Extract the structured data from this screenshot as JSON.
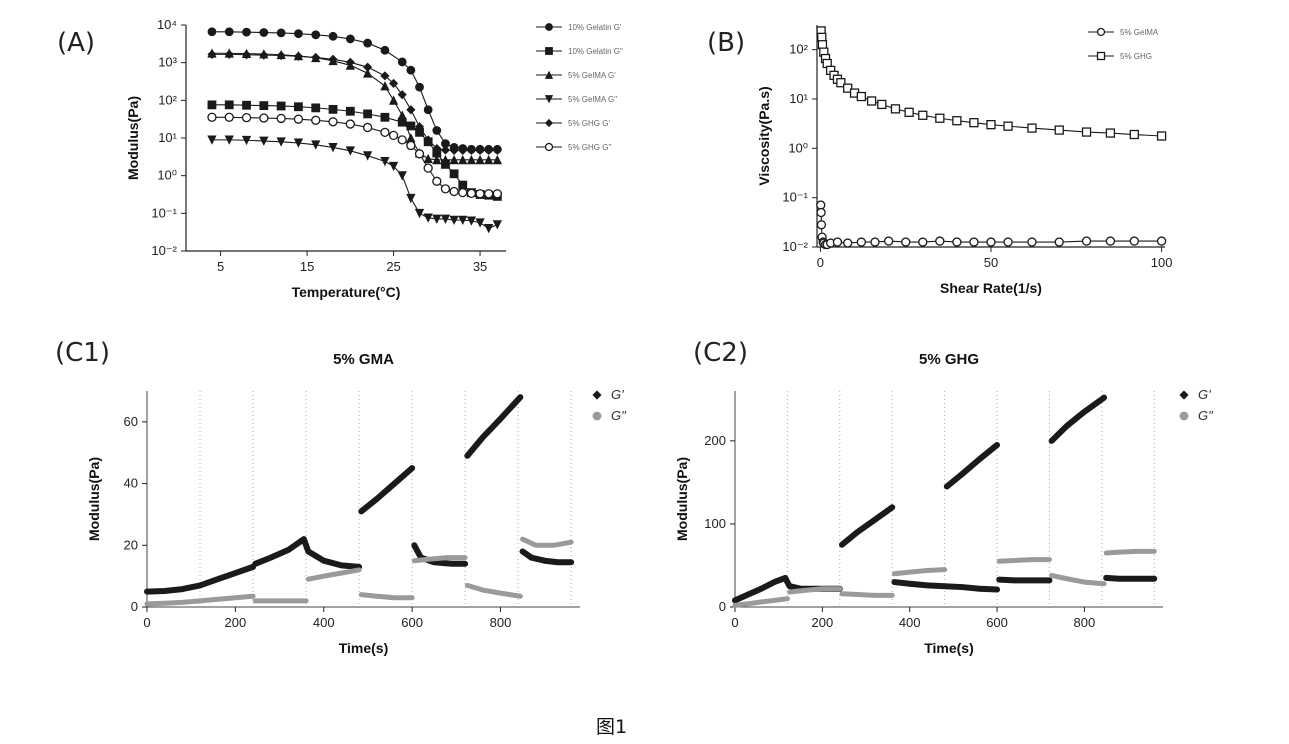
{
  "figure_caption": "图1",
  "chart_data": [
    {
      "panel": "(A)",
      "type": "line",
      "title": "",
      "xlabel": "Temperature(°C)",
      "ylabel": "Modulus(Pa)",
      "xlim": [
        1,
        38
      ],
      "ylim_log10": [
        -2,
        4
      ],
      "xticks": [
        "5",
        "15",
        "25",
        "35"
      ],
      "yticks": [
        "10⁻²",
        "10⁻¹",
        "10⁰",
        "10¹",
        "10²",
        "10³",
        "10⁴"
      ],
      "legend": "right",
      "series": [
        {
          "name": "10% Gelatin G'",
          "marker": "filled-circle",
          "x": [
            4,
            6,
            8,
            10,
            12,
            14,
            16,
            18,
            20,
            22,
            24,
            26,
            27,
            28,
            29,
            30,
            31,
            32,
            33,
            34,
            35,
            36,
            37
          ],
          "log10_y": [
            3.82,
            3.82,
            3.81,
            3.8,
            3.79,
            3.77,
            3.74,
            3.7,
            3.63,
            3.52,
            3.33,
            3.02,
            2.8,
            2.35,
            1.75,
            1.2,
            0.85,
            0.75,
            0.72,
            0.7,
            0.7,
            0.7,
            0.7
          ]
        },
        {
          "name": "10% Gelatin G\"",
          "marker": "filled-square",
          "x": [
            4,
            6,
            8,
            10,
            12,
            14,
            16,
            18,
            20,
            22,
            24,
            26,
            27,
            28,
            29,
            30,
            31,
            32,
            33,
            34,
            35,
            36,
            37
          ],
          "log10_y": [
            1.88,
            1.88,
            1.87,
            1.86,
            1.85,
            1.83,
            1.8,
            1.76,
            1.71,
            1.64,
            1.55,
            1.42,
            1.32,
            1.15,
            0.9,
            0.6,
            0.3,
            0.05,
            -0.25,
            -0.45,
            -0.5,
            -0.52,
            -0.55
          ]
        },
        {
          "name": "5% GelMA G'",
          "marker": "filled-triangle-up",
          "x": [
            4,
            6,
            8,
            10,
            12,
            14,
            16,
            18,
            20,
            22,
            24,
            25,
            26,
            27,
            28,
            29,
            30,
            31,
            32,
            33,
            34,
            35,
            36,
            37
          ],
          "log10_y": [
            3.25,
            3.25,
            3.24,
            3.23,
            3.21,
            3.18,
            3.13,
            3.05,
            2.93,
            2.72,
            2.38,
            2.0,
            1.6,
            1.0,
            0.6,
            0.45,
            0.42,
            0.42,
            0.42,
            0.42,
            0.42,
            0.42,
            0.42,
            0.42
          ]
        },
        {
          "name": "5% GelMA G\"",
          "marker": "filled-triangle-down",
          "x": [
            4,
            6,
            8,
            10,
            12,
            14,
            16,
            18,
            20,
            22,
            24,
            25,
            26,
            27,
            28,
            29,
            30,
            31,
            32,
            33,
            34,
            35,
            36,
            37
          ],
          "log10_y": [
            0.95,
            0.95,
            0.94,
            0.92,
            0.9,
            0.87,
            0.82,
            0.75,
            0.66,
            0.53,
            0.38,
            0.25,
            0.0,
            -0.6,
            -1.0,
            -1.12,
            -1.15,
            -1.15,
            -1.18,
            -1.18,
            -1.2,
            -1.25,
            -1.4,
            -1.3
          ]
        },
        {
          "name": "5% GHG G'",
          "marker": "filled-diamond",
          "x": [
            4,
            6,
            8,
            10,
            12,
            14,
            16,
            18,
            20,
            22,
            24,
            25,
            26,
            27,
            28,
            29,
            30,
            31,
            32,
            33,
            34,
            35,
            36,
            37
          ],
          "log10_y": [
            3.22,
            3.22,
            3.21,
            3.2,
            3.19,
            3.17,
            3.14,
            3.09,
            3.01,
            2.88,
            2.65,
            2.45,
            2.15,
            1.75,
            1.3,
            0.95,
            0.72,
            0.68,
            0.67,
            0.67,
            0.67,
            0.67,
            0.67,
            0.67
          ]
        },
        {
          "name": "5% GHG G\"",
          "marker": "open-circle",
          "x": [
            4,
            6,
            8,
            10,
            12,
            14,
            16,
            18,
            20,
            22,
            24,
            25,
            26,
            27,
            28,
            29,
            30,
            31,
            32,
            33,
            34,
            35,
            36,
            37
          ],
          "log10_y": [
            1.55,
            1.55,
            1.54,
            1.53,
            1.52,
            1.5,
            1.47,
            1.43,
            1.37,
            1.28,
            1.15,
            1.07,
            0.95,
            0.8,
            0.58,
            0.2,
            -0.15,
            -0.35,
            -0.42,
            -0.45,
            -0.47,
            -0.48,
            -0.48,
            -0.48
          ]
        }
      ]
    },
    {
      "panel": "(B)",
      "type": "line",
      "title": "",
      "xlabel": "Shear Rate(1/s)",
      "ylabel": "Viscosity(Pa.s)",
      "xlim": [
        -1,
        101
      ],
      "ylim_log10": [
        -2,
        2.5
      ],
      "xticks": [
        "0",
        "50",
        "100"
      ],
      "yticks": [
        "10⁻²",
        "10⁻¹",
        "10⁰",
        "10¹",
        "10²"
      ],
      "legend": "top-right",
      "series": [
        {
          "name": "5% GelMA",
          "marker": "open-circle",
          "x": [
            0.1,
            0.2,
            0.3,
            0.5,
            0.8,
            1,
            1.5,
            2,
            3,
            5,
            8,
            12,
            16,
            20,
            25,
            30,
            35,
            40,
            45,
            50,
            55,
            62,
            70,
            78,
            85,
            92,
            100
          ],
          "log10_y": [
            -1.15,
            -1.3,
            -1.55,
            -1.8,
            -1.9,
            -1.92,
            -1.95,
            -1.95,
            -1.92,
            -1.9,
            -1.92,
            -1.9,
            -1.9,
            -1.88,
            -1.9,
            -1.9,
            -1.88,
            -1.9,
            -1.9,
            -1.9,
            -1.9,
            -1.9,
            -1.9,
            -1.88,
            -1.88,
            -1.88,
            -1.88
          ]
        },
        {
          "name": "5% GHG",
          "marker": "open-square",
          "x": [
            0.2,
            0.4,
            0.6,
            1,
            1.5,
            2,
            3,
            4,
            5,
            6,
            8,
            10,
            12,
            15,
            18,
            22,
            26,
            30,
            35,
            40,
            45,
            50,
            55,
            62,
            70,
            78,
            85,
            92,
            100
          ],
          "log10_y": [
            2.38,
            2.25,
            2.1,
            1.95,
            1.82,
            1.72,
            1.58,
            1.48,
            1.4,
            1.33,
            1.22,
            1.12,
            1.05,
            0.96,
            0.89,
            0.8,
            0.73,
            0.67,
            0.61,
            0.56,
            0.52,
            0.48,
            0.45,
            0.41,
            0.37,
            0.33,
            0.31,
            0.28,
            0.25
          ]
        }
      ]
    },
    {
      "panel": "(C1)",
      "type": "scatter",
      "title": "5% GMA",
      "xlabel": "Time(s)",
      "ylabel": "Modulus(Pa)",
      "xlim": [
        0,
        980
      ],
      "ylim": [
        0,
        70
      ],
      "xticks": [
        "0",
        "200",
        "400",
        "600",
        "800"
      ],
      "yticks": [
        "0",
        "20",
        "40",
        "60"
      ],
      "vlines_s": [
        120,
        240,
        360,
        480,
        600,
        720,
        840,
        960
      ],
      "legend": "right",
      "series": [
        {
          "name": "G'",
          "segments": [
            {
              "x": [
                0,
                40,
                80,
                120,
                160,
                200,
                240
              ],
              "y": [
                5,
                5.2,
                5.8,
                7,
                9,
                11,
                13
              ]
            },
            {
              "x": [
                245,
                280,
                320,
                355,
                365,
                400,
                440,
                480
              ],
              "y": [
                14,
                16,
                18.5,
                22,
                18,
                15,
                13.5,
                13
              ]
            },
            {
              "x": [
                485,
                520,
                560,
                600
              ],
              "y": [
                31,
                35,
                40,
                45
              ]
            },
            {
              "x": [
                605,
                620,
                650,
                690,
                720
              ],
              "y": [
                20,
                16,
                14.5,
                14,
                14
              ]
            },
            {
              "x": [
                725,
                760,
                800,
                845
              ],
              "y": [
                49,
                55,
                61,
                68
              ]
            },
            {
              "x": [
                850,
                870,
                900,
                930,
                960
              ],
              "y": [
                18,
                16,
                15,
                14.5,
                14.5
              ]
            }
          ]
        },
        {
          "name": "G\"",
          "segments": [
            {
              "x": [
                0,
                40,
                80,
                120,
                160,
                200,
                240
              ],
              "y": [
                1,
                1.2,
                1.5,
                2,
                2.5,
                3,
                3.5
              ]
            },
            {
              "x": [
                245,
                280,
                320,
                360
              ],
              "y": [
                2,
                2,
                2,
                2
              ]
            },
            {
              "x": [
                365,
                400,
                440,
                480
              ],
              "y": [
                9,
                10,
                11,
                12
              ]
            },
            {
              "x": [
                485,
                520,
                560,
                600
              ],
              "y": [
                4,
                3.5,
                3,
                3
              ]
            },
            {
              "x": [
                605,
                640,
                680,
                720
              ],
              "y": [
                15,
                15.5,
                16,
                16
              ]
            },
            {
              "x": [
                725,
                760,
                800,
                845
              ],
              "y": [
                7,
                5.5,
                4.5,
                3.5
              ]
            },
            {
              "x": [
                850,
                880,
                920,
                960
              ],
              "y": [
                22,
                20,
                20,
                21
              ]
            }
          ]
        }
      ]
    },
    {
      "panel": "(C2)",
      "type": "scatter",
      "title": "5% GHG",
      "xlabel": "Time(s)",
      "ylabel": "Modulus(Pa)",
      "xlim": [
        0,
        980
      ],
      "ylim": [
        0,
        260
      ],
      "xticks": [
        "0",
        "200",
        "400",
        "600",
        "800"
      ],
      "yticks": [
        "0",
        "100",
        "200"
      ],
      "vlines_s": [
        120,
        240,
        360,
        480,
        600,
        720,
        840,
        960
      ],
      "legend": "right",
      "series": [
        {
          "name": "G'",
          "segments": [
            {
              "x": [
                0,
                30,
                60,
                90,
                115,
                125,
                150,
                180,
                210,
                240
              ],
              "y": [
                8,
                15,
                22,
                30,
                35,
                25,
                22,
                22,
                22,
                22
              ]
            },
            {
              "x": [
                245,
                280,
                320,
                360
              ],
              "y": [
                75,
                90,
                105,
                120
              ]
            },
            {
              "x": [
                365,
                400,
                440,
                480,
                520,
                560,
                600
              ],
              "y": [
                30,
                28,
                26,
                25,
                24,
                22,
                21
              ]
            },
            {
              "x": [
                485,
                520,
                560,
                600
              ],
              "y": [
                145,
                160,
                178,
                195
              ]
            },
            {
              "x": [
                605,
                640,
                680,
                720
              ],
              "y": [
                33,
                32,
                32,
                32
              ]
            },
            {
              "x": [
                725,
                760,
                800,
                845
              ],
              "y": [
                200,
                218,
                235,
                252
              ]
            },
            {
              "x": [
                850,
                880,
                920,
                960
              ],
              "y": [
                35,
                34,
                34,
                34
              ]
            }
          ]
        },
        {
          "name": "G\"",
          "segments": [
            {
              "x": [
                0,
                30,
                60,
                90,
                120
              ],
              "y": [
                2,
                4,
                6,
                8,
                10
              ]
            },
            {
              "x": [
                125,
                160,
                200,
                240
              ],
              "y": [
                18,
                20,
                22,
                22
              ]
            },
            {
              "x": [
                245,
                280,
                320,
                360
              ],
              "y": [
                16,
                15,
                14,
                14
              ]
            },
            {
              "x": [
                365,
                400,
                440,
                480
              ],
              "y": [
                40,
                42,
                44,
                45
              ]
            },
            {
              "x": [
                605,
                640,
                680,
                720
              ],
              "y": [
                55,
                56,
                57,
                57
              ]
            },
            {
              "x": [
                725,
                760,
                800,
                845
              ],
              "y": [
                38,
                34,
                30,
                28
              ]
            },
            {
              "x": [
                850,
                880,
                920,
                960
              ],
              "y": [
                65,
                66,
                67,
                67
              ]
            }
          ]
        }
      ]
    }
  ]
}
